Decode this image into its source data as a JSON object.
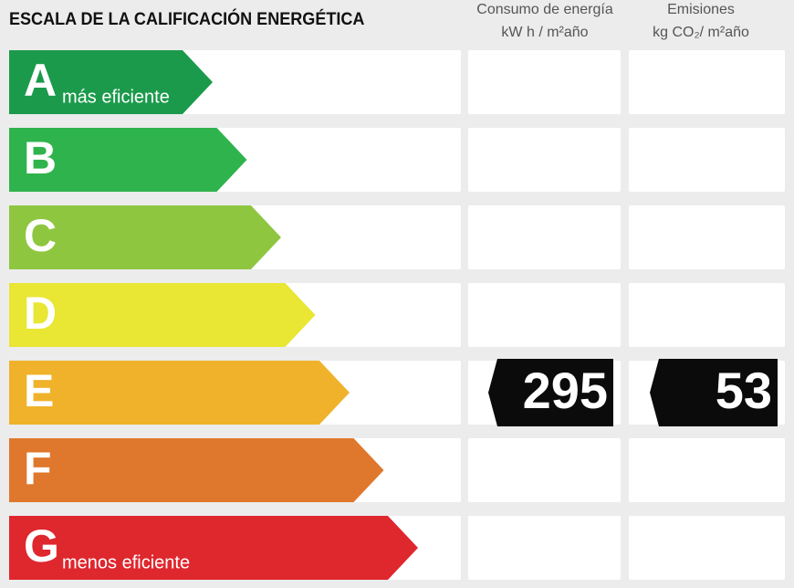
{
  "title": "ESCALA DE LA CALIFICACIÓN ENERGÉTICA",
  "columns": [
    {
      "name": "Consumo de energía",
      "unit": "kW h / m²año"
    },
    {
      "name": "Emisiones",
      "unit": "kg CO₂/ m²año"
    }
  ],
  "rows": [
    {
      "letter": "A",
      "note": "más eficiente",
      "color": "#1b9a4b"
    },
    {
      "letter": "B",
      "color": "#2fb34c"
    },
    {
      "letter": "C",
      "color": "#8fc640"
    },
    {
      "letter": "D",
      "color": "#e9e634"
    },
    {
      "letter": "E",
      "color": "#efb22a"
    },
    {
      "letter": "F",
      "color": "#df772c"
    },
    {
      "letter": "G",
      "note": "menos eficiente",
      "color": "#df272e"
    }
  ],
  "rating": {
    "letter": "E",
    "values": [
      "295",
      "53"
    ]
  }
}
